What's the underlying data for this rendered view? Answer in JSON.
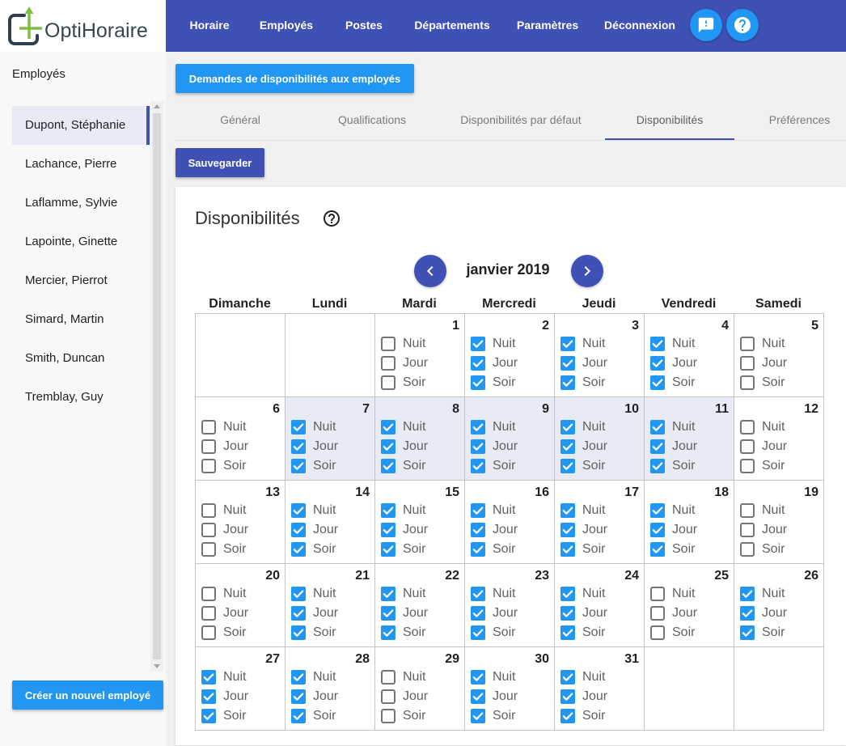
{
  "app": {
    "name": "OptiHoraire"
  },
  "navbar": {
    "links": [
      "Horaire",
      "Employés",
      "Postes",
      "Départements",
      "Paramètres",
      "Déconnexion"
    ]
  },
  "sidebar": {
    "title": "Employés",
    "employees": [
      {
        "name": "Dupont, Stéphanie",
        "selected": true
      },
      {
        "name": "Lachance, Pierre",
        "selected": false
      },
      {
        "name": "Laflamme, Sylvie",
        "selected": false
      },
      {
        "name": "Lapointe, Ginette",
        "selected": false
      },
      {
        "name": "Mercier, Pierrot",
        "selected": false
      },
      {
        "name": "Simard, Martin",
        "selected": false
      },
      {
        "name": "Smith, Duncan",
        "selected": false
      },
      {
        "name": "Tremblay, Guy",
        "selected": false
      }
    ],
    "create_button": "Créer un nouvel employé"
  },
  "main": {
    "request_button": "Demandes de disponibilités aux employés",
    "save_button": "Sauvegarder"
  },
  "tabs": [
    {
      "label": "Général",
      "active": false
    },
    {
      "label": "Qualifications",
      "active": false
    },
    {
      "label": "Disponibilités par défaut",
      "active": false
    },
    {
      "label": "Disponibilités",
      "active": true
    },
    {
      "label": "Préférences",
      "active": false
    }
  ],
  "calendar": {
    "title": "Disponibilités",
    "month_label": "janvier 2019",
    "weekdays": [
      "Dimanche",
      "Lundi",
      "Mardi",
      "Mercredi",
      "Jeudi",
      "Vendredi",
      "Samedi"
    ],
    "shift_labels": [
      "Nuit",
      "Jour",
      "Soir"
    ],
    "weeks": [
      [
        null,
        null,
        {
          "day": 1,
          "checks": [
            false,
            false,
            false
          ]
        },
        {
          "day": 2,
          "checks": [
            true,
            true,
            true
          ]
        },
        {
          "day": 3,
          "checks": [
            true,
            true,
            true
          ]
        },
        {
          "day": 4,
          "checks": [
            true,
            true,
            true
          ]
        },
        {
          "day": 5,
          "checks": [
            false,
            false,
            false
          ]
        }
      ],
      [
        {
          "day": 6,
          "checks": [
            false,
            false,
            false
          ]
        },
        {
          "day": 7,
          "highlighted": true,
          "checks": [
            true,
            true,
            true
          ]
        },
        {
          "day": 8,
          "highlighted": true,
          "checks": [
            true,
            true,
            true
          ]
        },
        {
          "day": 9,
          "highlighted": true,
          "checks": [
            true,
            true,
            true
          ]
        },
        {
          "day": 10,
          "highlighted": true,
          "checks": [
            true,
            true,
            true
          ]
        },
        {
          "day": 11,
          "highlighted": true,
          "checks": [
            true,
            true,
            true
          ]
        },
        {
          "day": 12,
          "checks": [
            false,
            false,
            false
          ]
        }
      ],
      [
        {
          "day": 13,
          "checks": [
            false,
            false,
            false
          ]
        },
        {
          "day": 14,
          "checks": [
            true,
            true,
            true
          ]
        },
        {
          "day": 15,
          "checks": [
            true,
            true,
            true
          ]
        },
        {
          "day": 16,
          "checks": [
            true,
            true,
            true
          ]
        },
        {
          "day": 17,
          "checks": [
            true,
            true,
            true
          ]
        },
        {
          "day": 18,
          "checks": [
            true,
            true,
            true
          ]
        },
        {
          "day": 19,
          "checks": [
            false,
            false,
            false
          ]
        }
      ],
      [
        {
          "day": 20,
          "checks": [
            false,
            false,
            false
          ]
        },
        {
          "day": 21,
          "checks": [
            true,
            true,
            true
          ]
        },
        {
          "day": 22,
          "checks": [
            true,
            true,
            true
          ]
        },
        {
          "day": 23,
          "checks": [
            true,
            true,
            true
          ]
        },
        {
          "day": 24,
          "checks": [
            true,
            true,
            true
          ]
        },
        {
          "day": 25,
          "checks": [
            false,
            false,
            false
          ]
        },
        {
          "day": 26,
          "checks": [
            true,
            true,
            true
          ]
        }
      ],
      [
        {
          "day": 27,
          "checks": [
            true,
            true,
            true
          ]
        },
        {
          "day": 28,
          "checks": [
            true,
            true,
            true
          ]
        },
        {
          "day": 29,
          "checks": [
            false,
            false,
            false
          ]
        },
        {
          "day": 30,
          "checks": [
            true,
            true,
            true
          ]
        },
        {
          "day": 31,
          "checks": [
            true,
            true,
            true
          ]
        },
        null,
        null
      ]
    ]
  },
  "icons": {
    "logo": "optihoraire-logo-icon",
    "feedback": "feedback-icon",
    "help": "help-icon",
    "title_help": "help-circle-outline-icon",
    "prev_month": "chevron-left-icon",
    "next_month": "chevron-right-icon",
    "checked": "checkbox-checked-icon",
    "unchecked": "checkbox-unchecked-icon"
  },
  "colors": {
    "primary": "#3f51b5",
    "accent": "#2196f3",
    "selected_bg": "#e8eaf6",
    "checkbox_checked": "#2196f3",
    "checkbox_unchecked_border": "#757575",
    "grid_border": "#c4c4c4"
  }
}
